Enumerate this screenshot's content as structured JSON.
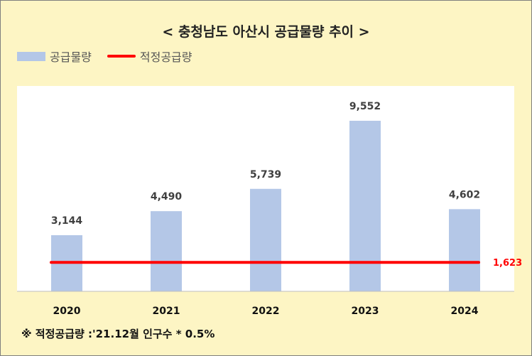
{
  "chart_data": {
    "type": "bar",
    "title": "< 충청남도 아산시 공급물량 추이 >",
    "categories": [
      "2020",
      "2021",
      "2022",
      "2023",
      "2024"
    ],
    "series": [
      {
        "name": "공급물량",
        "values": [
          3144,
          4490,
          5739,
          9552,
          4602
        ],
        "value_labels": [
          "3,144",
          "4,490",
          "5,739",
          "9,552",
          "4,602"
        ],
        "color": "#b4c7e7"
      },
      {
        "name": "적정공급량",
        "type": "line",
        "value": 1623,
        "value_label": "1,623",
        "color": "#ff0000"
      }
    ],
    "ylim": [
      0,
      11500
    ],
    "grid": false,
    "legend": "top-left"
  },
  "footnote": "※ 적정공급량 :'21.12월 인구수 * 0.5%",
  "colors": {
    "background": "#fdf5c4",
    "plot": "#ffffff",
    "bar": "#b4c7e7",
    "line": "#ff0000"
  }
}
